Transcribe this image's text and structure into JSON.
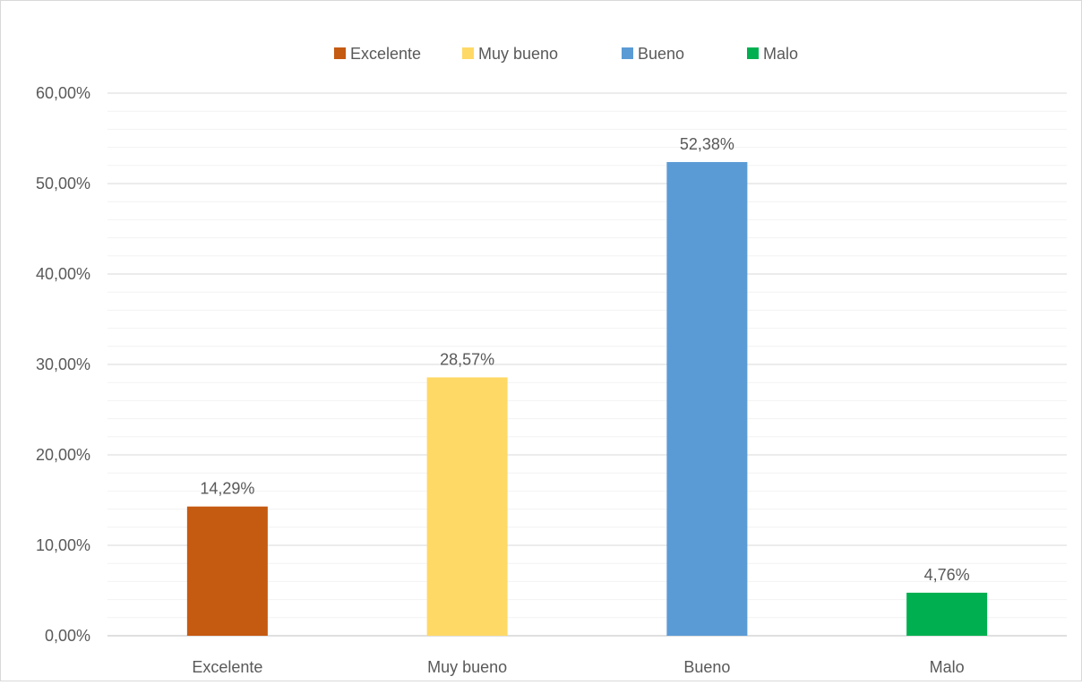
{
  "chart_data": {
    "type": "bar",
    "title": "",
    "xlabel": "",
    "ylabel": "",
    "categories": [
      "Excelente",
      "Muy bueno",
      "Bueno",
      "Malo"
    ],
    "values": [
      14.29,
      28.57,
      52.38,
      4.76
    ],
    "data_labels": [
      "14,29%",
      "28,57%",
      "52,38%",
      "4,76%"
    ],
    "colors": [
      "#c55a11",
      "#ffd966",
      "#5b9bd5",
      "#00b050"
    ],
    "ylim": [
      0,
      60
    ],
    "y_ticks": [
      0,
      10,
      20,
      30,
      40,
      50,
      60
    ],
    "y_tick_labels": [
      "0,00%",
      "10,00%",
      "20,00%",
      "30,00%",
      "40,00%",
      "50,00%",
      "60,00%"
    ],
    "minor_gridlines": true,
    "grid": true,
    "legend": {
      "placement": "top-center",
      "entries": [
        "Excelente",
        "Muy bueno",
        "Bueno",
        "Malo"
      ]
    }
  }
}
